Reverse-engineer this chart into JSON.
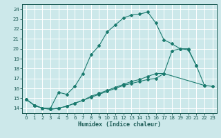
{
  "xlabel": "Humidex (Indice chaleur)",
  "bg_color": "#cce8ea",
  "grid_color": "#ffffff",
  "line_color": "#1a7a6e",
  "xlim": [
    -0.5,
    23.5
  ],
  "ylim": [
    13.5,
    24.5
  ],
  "xticks": [
    0,
    1,
    2,
    3,
    4,
    5,
    6,
    7,
    8,
    9,
    10,
    11,
    12,
    13,
    14,
    15,
    16,
    17,
    18,
    19,
    20,
    21,
    22,
    23
  ],
  "yticks": [
    14,
    15,
    16,
    17,
    18,
    19,
    20,
    21,
    22,
    23,
    24
  ],
  "line1_x": [
    0,
    1,
    2,
    3,
    4,
    5,
    6,
    7,
    8,
    9,
    10,
    11,
    12,
    13,
    14,
    15,
    16,
    17,
    18,
    19,
    20,
    21
  ],
  "line1_y": [
    14.9,
    14.3,
    14.0,
    14.0,
    15.6,
    15.4,
    16.2,
    17.5,
    19.4,
    20.3,
    21.7,
    22.4,
    23.1,
    23.4,
    23.5,
    23.7,
    22.6,
    20.9,
    20.5,
    20.0,
    19.9,
    18.3
  ],
  "line2_x": [
    0,
    1,
    2,
    3,
    4,
    5,
    6,
    7,
    8,
    9,
    10,
    11,
    12,
    13,
    14,
    15,
    16,
    17,
    22,
    23
  ],
  "line2_y": [
    14.9,
    14.3,
    14.0,
    13.9,
    14.0,
    14.2,
    14.5,
    14.8,
    15.1,
    15.4,
    15.7,
    16.0,
    16.3,
    16.5,
    16.7,
    16.9,
    17.0,
    17.5,
    16.3,
    16.2
  ],
  "line3_x": [
    0,
    1,
    2,
    3,
    4,
    5,
    6,
    7,
    8,
    9,
    10,
    11,
    12,
    13,
    14,
    15,
    16,
    17,
    18,
    19,
    20,
    21,
    22
  ],
  "line3_y": [
    14.9,
    14.3,
    14.0,
    13.9,
    14.0,
    14.2,
    14.5,
    14.8,
    15.2,
    15.5,
    15.8,
    16.1,
    16.4,
    16.7,
    16.9,
    17.2,
    17.5,
    17.5,
    19.8,
    20.0,
    20.0,
    18.3,
    16.3
  ]
}
